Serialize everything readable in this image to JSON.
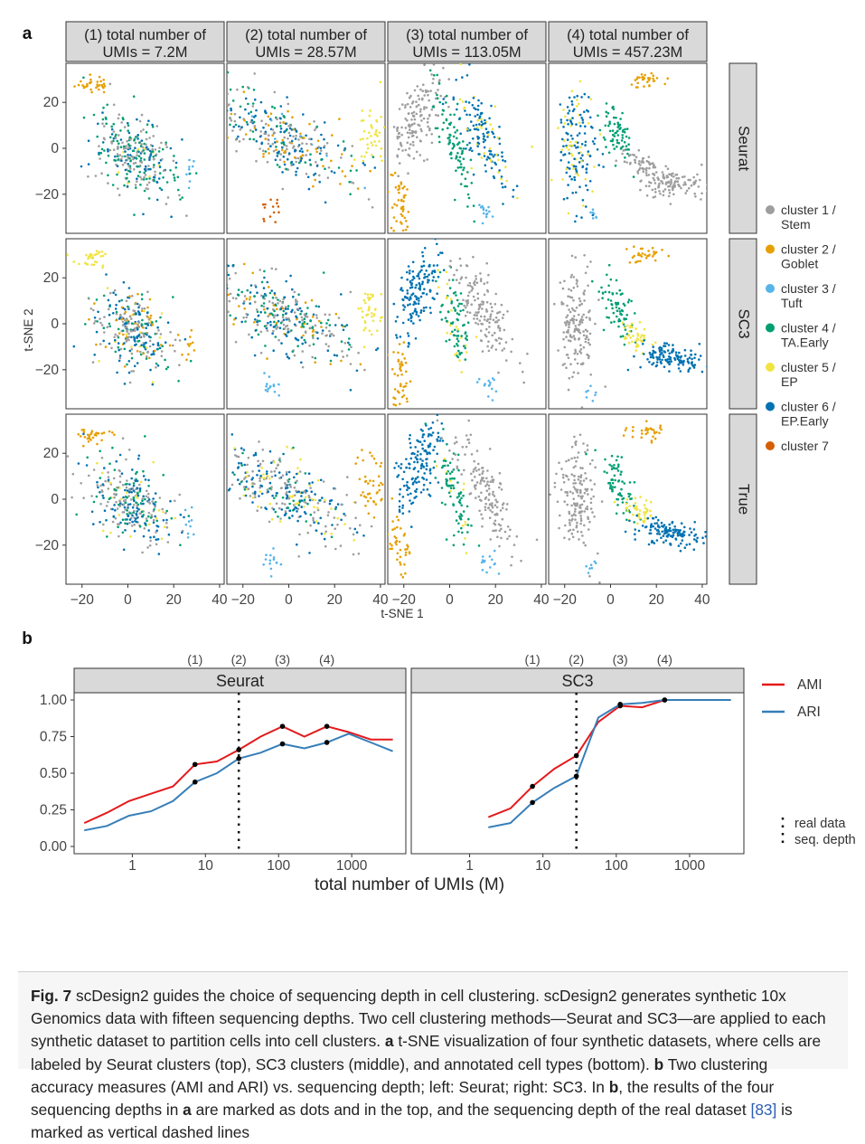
{
  "panel_a": {
    "label": "a",
    "columns": [
      "(1) total number of\nUMIs = 7.2M",
      "(2) total number of\nUMIs = 28.57M",
      "(3) total number of\nUMIs = 113.05M",
      "(4) total number of\nUMIs = 457.23M"
    ],
    "rows": [
      "Seurat",
      "SC3",
      "True"
    ],
    "xlabel": "t-SNE 1",
    "ylabel": "t-SNE 2",
    "x_ticks": [
      "−20",
      "0",
      "20",
      "40"
    ],
    "y_ticks": [
      "20",
      "0",
      "−20"
    ],
    "legend": [
      {
        "label": "cluster 1 /\nStem",
        "color": "#9e9e9e"
      },
      {
        "label": "cluster 2 /\nGoblet",
        "color": "#e69f00"
      },
      {
        "label": "cluster 3 /\nTuft",
        "color": "#56b4e9"
      },
      {
        "label": "cluster 4 /\nTA.Early",
        "color": "#009e73"
      },
      {
        "label": "cluster 5 /\nEP",
        "color": "#f0e442"
      },
      {
        "label": "cluster 6 /\nEP.Early",
        "color": "#0072b2"
      },
      {
        "label": "cluster 7",
        "color": "#d55e00"
      }
    ]
  },
  "panel_b": {
    "label": "b",
    "xlabel": "total number of UMIs (M)",
    "x_ticks": [
      "1",
      "10",
      "100",
      "1000"
    ],
    "y_ticks": [
      "0.00",
      "0.25",
      "0.50",
      "0.75",
      "1.00"
    ],
    "depth_marks": [
      "(1)",
      "(2)",
      "(3)",
      "(4)"
    ],
    "legend_lines": [
      {
        "label": "AMI",
        "color": "#e41a1c"
      },
      {
        "label": "ARI",
        "color": "#377eb8"
      }
    ],
    "legend_dotted": "real data\nseq. depth"
  },
  "chart_data": [
    {
      "type": "line",
      "title": "Seurat",
      "xlabel": "total number of UMIs (M)",
      "x_scale": "log",
      "ylim": [
        0,
        1
      ],
      "x": [
        0.22,
        0.45,
        0.9,
        1.8,
        3.6,
        7.2,
        14.3,
        28.57,
        57,
        113.05,
        226,
        457.23,
        914,
        1830,
        3650
      ],
      "series": [
        {
          "name": "AMI",
          "color": "#e41a1c",
          "values": [
            0.16,
            0.23,
            0.31,
            0.36,
            0.41,
            0.56,
            0.58,
            0.66,
            0.75,
            0.82,
            0.75,
            0.82,
            0.78,
            0.73,
            0.73
          ]
        },
        {
          "name": "ARI",
          "color": "#377eb8",
          "values": [
            0.11,
            0.14,
            0.21,
            0.24,
            0.31,
            0.44,
            0.5,
            0.6,
            0.64,
            0.7,
            0.67,
            0.71,
            0.77,
            0.71,
            0.65
          ]
        }
      ],
      "marked_points_x": [
        7.2,
        28.57,
        113.05,
        457.23
      ],
      "real_depth_x": 28.57
    },
    {
      "type": "line",
      "title": "SC3",
      "xlabel": "total number of UMIs (M)",
      "x_scale": "log",
      "ylim": [
        0,
        1
      ],
      "x": [
        1.8,
        3.6,
        7.2,
        14.3,
        28.57,
        57,
        113.05,
        226,
        457.23,
        914,
        1830,
        3650
      ],
      "series": [
        {
          "name": "AMI",
          "color": "#e41a1c",
          "values": [
            0.2,
            0.26,
            0.41,
            0.53,
            0.62,
            0.85,
            0.96,
            0.95,
            1.0,
            1.0,
            1.0,
            1.0
          ]
        },
        {
          "name": "ARI",
          "color": "#377eb8",
          "values": [
            0.13,
            0.16,
            0.3,
            0.4,
            0.48,
            0.88,
            0.97,
            0.98,
            1.0,
            1.0,
            1.0,
            1.0
          ]
        }
      ],
      "marked_points_x": [
        7.2,
        28.57,
        113.05,
        457.23
      ],
      "real_depth_x": 28.57
    }
  ],
  "caption": {
    "fig_label": "Fig. 7",
    "title": "scDesign2 guides the choice of sequencing depth in cell clustering.",
    "text_1": "scDesign2 generates synthetic 10x Genomics data with fifteen sequencing depths. Two cell clustering methods—Seurat and SC3—are applied to each synthetic dataset to partition cells into cell clusters.",
    "a_bold": "a",
    "text_2": "t-SNE visualization of four synthetic datasets, where cells are labeled by Seurat clusters (top), SC3 clusters (middle), and annotated cell types (bottom).",
    "b_bold": "b",
    "text_3": "Two clustering accuracy measures (AMI and ARI) vs. sequencing depth; left: Seurat; right: SC3. In",
    "b_bold2": "b",
    "text_4": ", the results of the four sequencing depths in",
    "a_bold2": "a",
    "text_5": "are marked as dots and in the top, and the sequencing depth of the real dataset",
    "ref": "[83]",
    "text_6": "is marked as vertical dashed lines"
  }
}
